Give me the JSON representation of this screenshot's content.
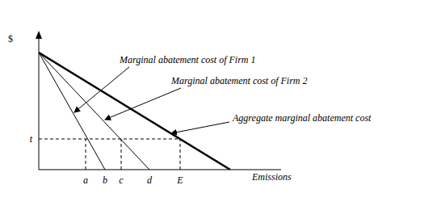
{
  "chart_data": {
    "type": "line",
    "xlabel": "Emissions",
    "ylabel": "$",
    "xlim": [
      0,
      300
    ],
    "ylim": [
      0,
      170
    ],
    "xticks": [
      {
        "value": 58,
        "label": "a"
      },
      {
        "value": 82,
        "label": "b"
      },
      {
        "value": 102,
        "label": "c"
      },
      {
        "value": 137,
        "label": "d"
      },
      {
        "value": 175,
        "label": "E"
      }
    ],
    "yticks": [
      {
        "value": 38,
        "label": "t"
      }
    ],
    "grid": false,
    "series": [
      {
        "name": "Marginal abatement cost of Firm 1",
        "color": "#000000",
        "x": [
          0,
          82
        ],
        "values": [
          145,
          0
        ],
        "line_style": "solid"
      },
      {
        "name": "Marginal abatement cost of Firm 2",
        "color": "#000000",
        "x": [
          0,
          137
        ],
        "values": [
          145,
          0
        ],
        "line_style": "solid"
      },
      {
        "name": "Aggregate marginal abatement cost",
        "color": "#000000",
        "x": [
          0,
          237
        ],
        "values": [
          145,
          0
        ],
        "line_style": "solid"
      }
    ],
    "tax": {
      "value": 38,
      "x_end": 175,
      "drops": [
        58,
        102,
        175
      ],
      "line_style": "dashed",
      "color": "#000000"
    }
  }
}
